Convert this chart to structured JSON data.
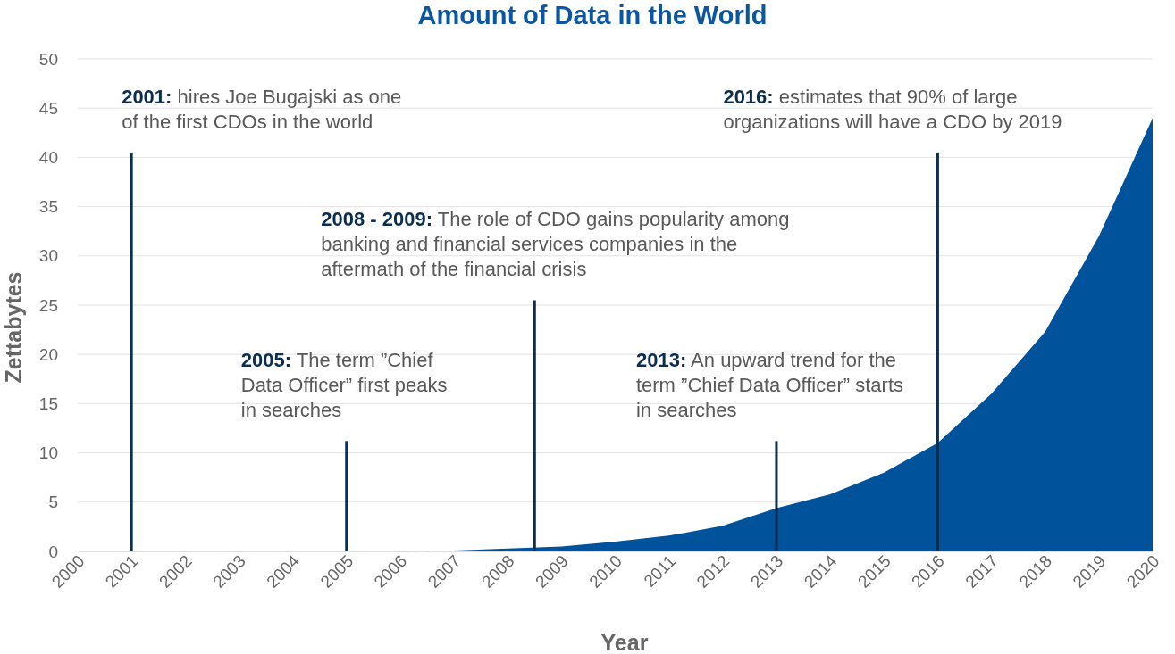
{
  "chart_data": {
    "type": "area",
    "title": "Amount of Data in the World",
    "xlabel": "Year",
    "ylabel": "Zettabytes",
    "x": [
      2000,
      2001,
      2002,
      2003,
      2004,
      2005,
      2006,
      2007,
      2008,
      2009,
      2010,
      2011,
      2012,
      2013,
      2014,
      2015,
      2016,
      2017,
      2018,
      2019,
      2020
    ],
    "series": [
      {
        "color": "#00529b",
        "values": [
          0,
          0,
          0,
          0,
          0,
          0,
          0,
          0.1,
          0.3,
          0.5,
          1,
          1.6,
          2.6,
          4.4,
          5.8,
          8,
          11,
          16,
          22.3,
          32,
          44
        ]
      },
      {
        "type": "bar",
        "color": "#0b2e4f",
        "x": [
          2001,
          2005,
          2008.5,
          2013,
          2016
        ],
        "values": [
          40.5,
          11.2,
          25.5,
          11.2,
          40.5
        ]
      }
    ],
    "xlim": [
      2000,
      2020
    ],
    "xticks": [
      2000,
      2001,
      2002,
      2003,
      2004,
      2005,
      2006,
      2007,
      2008,
      2009,
      2010,
      2011,
      2012,
      2013,
      2014,
      2015,
      2016,
      2017,
      2018,
      2019,
      2020
    ],
    "ylim": [
      0,
      50
    ],
    "yticks": [
      0,
      5,
      10,
      15,
      20,
      25,
      30,
      35,
      40,
      45,
      50
    ],
    "grid": "y",
    "annotations": [
      {
        "text": "2001: hires Joe Bugajski as one of the first CDOs in the world",
        "x": 2001,
        "y": 40.5
      },
      {
        "text": "2005: The term ”Chief Data Officer” first peaks in searches",
        "x": 2005,
        "y": 11.2
      },
      {
        "text": "2008 - 2009: The role of CDO gains popularity among banking and financial services companies in the aftermath of the financial crisis",
        "x": 2008.5,
        "y": 25.5
      },
      {
        "text": "2013: An upward trend for the term ”Chief Data Officer” starts in searches",
        "x": 2013,
        "y": 11.2
      },
      {
        "text": "2016: estimates that 90% of large organizations will have a CDO by 2019",
        "x": 2016,
        "y": 40.5
      }
    ]
  }
}
